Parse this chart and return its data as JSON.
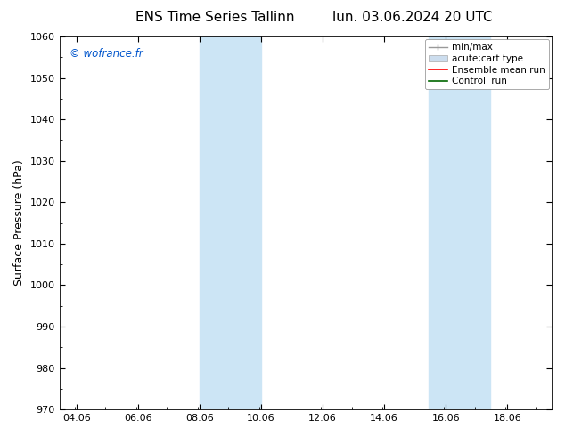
{
  "title_left": "ENS Time Series Tallinn",
  "title_right": "lun. 03.06.2024 20 UTC",
  "ylabel": "Surface Pressure (hPa)",
  "ylim": [
    970,
    1060
  ],
  "yticks": [
    970,
    980,
    990,
    1000,
    1010,
    1020,
    1030,
    1040,
    1050,
    1060
  ],
  "xlim_start": 3.5,
  "xlim_end": 19.5,
  "xtick_labels": [
    "04.06",
    "06.06",
    "08.06",
    "10.06",
    "12.06",
    "14.06",
    "16.06",
    "18.06"
  ],
  "xtick_positions": [
    4.06,
    6.06,
    8.06,
    10.06,
    12.06,
    14.06,
    16.06,
    18.06
  ],
  "shaded_bands": [
    {
      "xmin": 8.06,
      "xmax": 10.06
    },
    {
      "xmin": 15.5,
      "xmax": 17.5
    }
  ],
  "shade_color": "#cce5f5",
  "watermark_text": "© wofrance.fr",
  "watermark_color": "#0055cc",
  "bg_color": "#ffffff",
  "title_fontsize": 11,
  "label_fontsize": 9,
  "tick_fontsize": 8,
  "legend_fontsize": 7.5
}
